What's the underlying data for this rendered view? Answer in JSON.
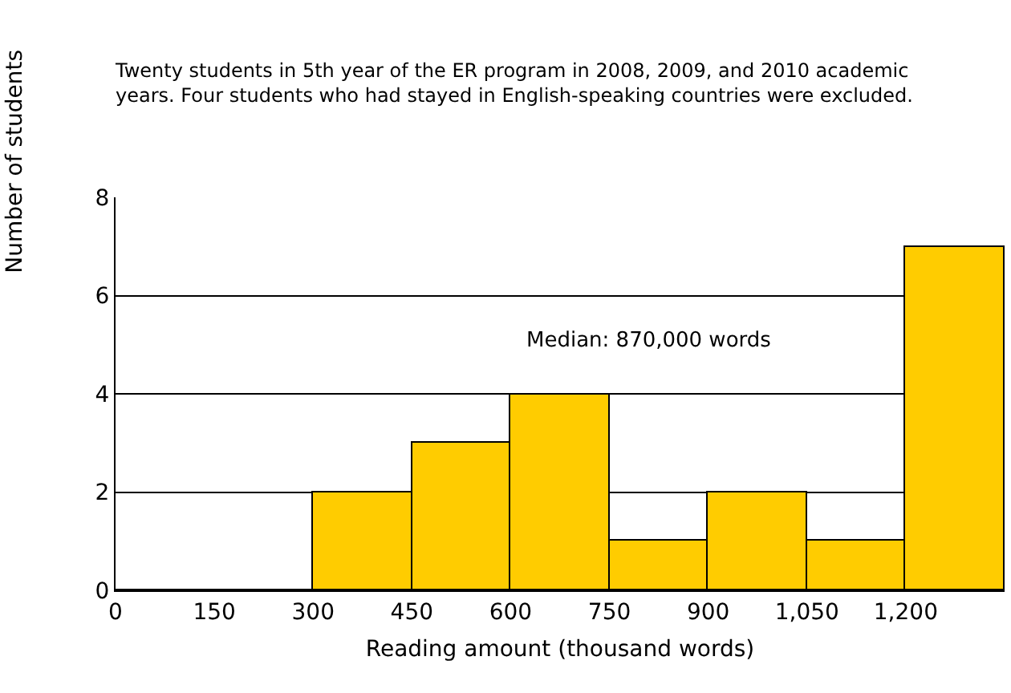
{
  "chart_data": {
    "type": "histogram",
    "title": "Twenty students in 5th year of the ER program in 2008, 2009, and 2010 academic years. Four students who had stayed in English-speaking countries were excluded.",
    "xlabel": "Reading amount (thousand words)",
    "ylabel": "Number of students",
    "bins": [
      0,
      150,
      300,
      450,
      600,
      750,
      900,
      1050,
      1200,
      1350
    ],
    "values": [
      0,
      0,
      2,
      3,
      4,
      1,
      2,
      1,
      7
    ],
    "color": "#ffcc00",
    "xlim": [
      0,
      1350
    ],
    "xticks": [
      0,
      150,
      300,
      450,
      600,
      750,
      900,
      {
        "value": 1050,
        "label": "1,050"
      },
      {
        "value": 1200,
        "label": "1,200"
      }
    ],
    "ylim": [
      0,
      8
    ],
    "yticks": [
      0,
      2,
      4,
      6,
      8
    ],
    "grid": "y",
    "annotations": [
      "Median: 870,000 words"
    ]
  }
}
